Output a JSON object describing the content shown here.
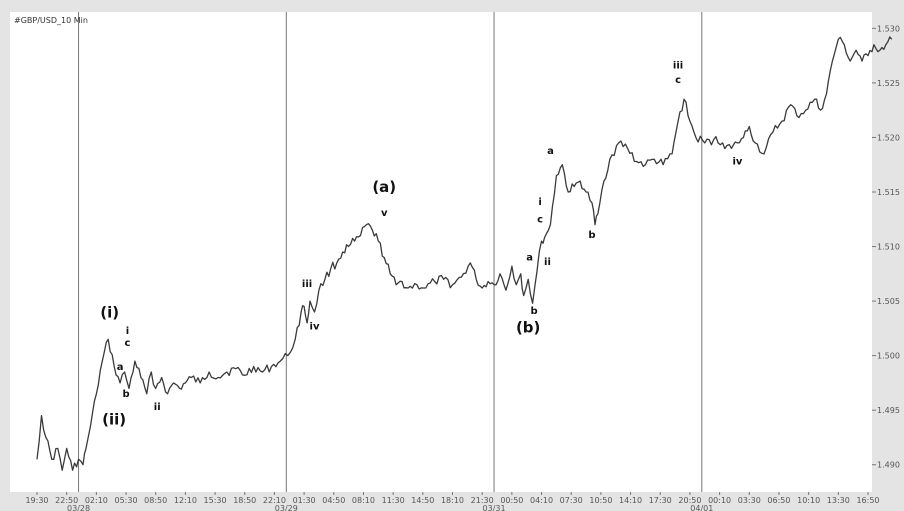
{
  "chart_data": {
    "type": "line",
    "title": "#GBP/USD_10 Min",
    "xlabel": "",
    "ylabel": "",
    "ylim": [
      1.4875,
      1.5315
    ],
    "grid": false,
    "line_color": "#3a3a3a",
    "background": "#ffffff",
    "separator_color": "#777777",
    "yticks": [
      "1.490",
      "1.495",
      "1.500",
      "1.505",
      "1.510",
      "1.515",
      "1.520",
      "1.525",
      "1.530"
    ],
    "xticks": [
      "19:30",
      "22:50",
      "02:10",
      "05:30",
      "08:50",
      "12:10",
      "15:30",
      "18:50",
      "22:10",
      "01:30",
      "04:50",
      "08:10",
      "11:30",
      "14:50",
      "18:10",
      "21:30",
      "00:50",
      "04:10",
      "07:30",
      "10:50",
      "14:10",
      "17:30",
      "20:50",
      "00:10",
      "03:30",
      "06:50",
      "10:10",
      "13:30",
      "16:50"
    ],
    "date_labels": [
      "03/28",
      "03/29",
      "03/31",
      "04/01"
    ],
    "day_separators_at_tick": [
      1.4,
      8.4,
      15.4,
      22.4
    ],
    "series": [
      {
        "x": [
          0,
          0.15,
          0.3,
          0.5,
          0.7,
          0.85,
          1.0,
          1.2,
          1.4,
          1.55,
          1.65,
          1.8,
          2.0,
          2.2,
          2.4,
          2.6,
          2.8,
          2.95,
          3.1,
          3.3,
          3.5,
          3.7,
          3.85,
          4.0,
          4.2,
          4.4,
          4.6,
          4.8,
          5.0,
          5.2,
          5.5,
          5.8,
          6.1,
          6.4,
          6.7,
          7.0,
          7.3,
          7.6,
          7.9,
          8.2,
          8.45,
          8.7,
          8.9,
          9.0,
          9.1,
          9.2,
          9.35,
          9.5,
          9.7,
          9.9,
          10.1,
          10.3,
          10.5,
          10.7,
          10.9,
          11.1,
          11.3,
          11.5,
          11.7,
          11.9,
          12.1,
          12.3,
          12.5,
          12.8,
          13.1,
          13.4,
          13.7,
          14.0,
          14.3,
          14.6,
          14.8,
          15.0,
          15.2,
          15.4,
          15.6,
          15.8,
          16.0,
          16.15,
          16.3,
          16.4,
          16.55,
          16.7,
          16.85,
          17.0,
          17.1,
          17.3,
          17.5,
          17.7,
          17.9,
          18.1,
          18.3,
          18.5,
          18.7,
          18.8,
          18.9,
          19.1,
          19.3,
          19.6,
          19.9,
          20.2,
          20.5,
          20.8,
          21.1,
          21.4,
          21.6,
          21.8,
          22.0,
          22.2,
          22.5,
          22.8,
          23.1,
          23.4,
          23.6,
          23.8,
          24.0,
          24.2,
          24.5,
          24.8,
          25.1,
          25.4,
          25.6,
          25.9,
          26.2,
          26.4,
          26.6,
          26.8,
          27.0,
          27.2,
          27.4,
          27.6,
          27.8,
          28.0,
          28.2,
          28.4,
          28.6,
          28.8
        ],
        "values": [
          1.4905,
          1.4945,
          1.4925,
          1.4905,
          1.4915,
          1.4895,
          1.4915,
          1.4895,
          1.4905,
          1.49,
          1.4915,
          1.4935,
          1.4965,
          1.4995,
          1.5015,
          1.499,
          1.4975,
          1.4985,
          1.497,
          1.4995,
          1.498,
          1.4965,
          1.4985,
          1.497,
          1.498,
          1.4965,
          1.4975,
          1.497,
          1.4975,
          1.498,
          1.4975,
          1.4985,
          1.498,
          1.4985,
          1.4988,
          1.4982,
          1.499,
          1.4985,
          1.499,
          1.4995,
          1.5,
          1.5015,
          1.504,
          1.5045,
          1.503,
          1.505,
          1.504,
          1.506,
          1.507,
          1.508,
          1.5085,
          1.5095,
          1.51,
          1.5105,
          1.511,
          1.512,
          1.5115,
          1.5105,
          1.509,
          1.5075,
          1.5065,
          1.5068,
          1.5062,
          1.5065,
          1.5062,
          1.5068,
          1.507,
          1.5065,
          1.5072,
          1.5085,
          1.507,
          1.5062,
          1.5068,
          1.5065,
          1.5075,
          1.506,
          1.5082,
          1.5065,
          1.5075,
          1.5055,
          1.507,
          1.5048,
          1.5078,
          1.5105,
          1.5108,
          1.512,
          1.5165,
          1.5175,
          1.515,
          1.5155,
          1.516,
          1.515,
          1.514,
          1.512,
          1.513,
          1.516,
          1.518,
          1.5195,
          1.519,
          1.5178,
          1.5175,
          1.518,
          1.5175,
          1.5185,
          1.5215,
          1.5235,
          1.5215,
          1.52,
          1.5195,
          1.5198,
          1.5195,
          1.519,
          1.5195,
          1.52,
          1.521,
          1.5195,
          1.5185,
          1.5205,
          1.5215,
          1.523,
          1.522,
          1.5225,
          1.5235,
          1.5225,
          1.524,
          1.527,
          1.529,
          1.5285,
          1.527,
          1.528,
          1.527,
          1.5275,
          1.5285,
          1.528,
          1.5285,
          1.529
        ]
      }
    ],
    "annotations": [
      {
        "text": "(i)",
        "x": 2.45,
        "y": 1.5035,
        "size": "large"
      },
      {
        "text": "i",
        "x": 3.05,
        "y": 1.502,
        "size": "small"
      },
      {
        "text": "c",
        "x": 3.05,
        "y": 1.5009,
        "size": "small"
      },
      {
        "text": "a",
        "x": 2.8,
        "y": 1.4987,
        "size": "small"
      },
      {
        "text": "b",
        "x": 3.0,
        "y": 1.4962,
        "size": "small"
      },
      {
        "text": "(ii)",
        "x": 2.6,
        "y": 1.4937,
        "size": "large"
      },
      {
        "text": "ii",
        "x": 4.05,
        "y": 1.495,
        "size": "small"
      },
      {
        "text": "iii",
        "x": 9.1,
        "y": 1.5063,
        "size": "small"
      },
      {
        "text": "iv",
        "x": 9.35,
        "y": 1.5024,
        "size": "small"
      },
      {
        "text": "(a)",
        "x": 11.7,
        "y": 1.515,
        "size": "large"
      },
      {
        "text": "v",
        "x": 11.7,
        "y": 1.5128,
        "size": "small"
      },
      {
        "text": "a",
        "x": 16.6,
        "y": 1.5087,
        "size": "small"
      },
      {
        "text": "b",
        "x": 16.75,
        "y": 1.5038,
        "size": "small"
      },
      {
        "text": "(b)",
        "x": 16.55,
        "y": 1.5021,
        "size": "large"
      },
      {
        "text": "i",
        "x": 16.95,
        "y": 1.5138,
        "size": "small"
      },
      {
        "text": "c",
        "x": 16.95,
        "y": 1.5122,
        "size": "small"
      },
      {
        "text": "ii",
        "x": 17.2,
        "y": 1.5083,
        "size": "small"
      },
      {
        "text": "a",
        "x": 17.3,
        "y": 1.5185,
        "size": "small"
      },
      {
        "text": "b",
        "x": 18.7,
        "y": 1.5108,
        "size": "small"
      },
      {
        "text": "iii",
        "x": 21.6,
        "y": 1.5263,
        "size": "small"
      },
      {
        "text": "c",
        "x": 21.6,
        "y": 1.525,
        "size": "small"
      },
      {
        "text": "iv",
        "x": 23.6,
        "y": 1.5175,
        "size": "small"
      }
    ]
  }
}
